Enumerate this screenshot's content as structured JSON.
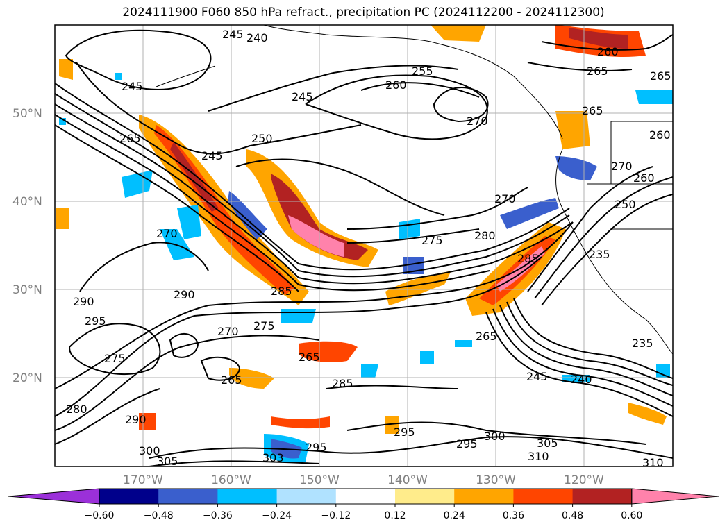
{
  "title": "2024111900 F060 850 hPa refract., precipitation PC (2024112200 - 2024112300)",
  "lat_labels": [
    "50°N",
    "40°N",
    "30°N",
    "20°N"
  ],
  "lon_labels": [
    "170°W",
    "160°W",
    "150°W",
    "140°W",
    "130°W",
    "120°W"
  ],
  "colorbar": {
    "ticks": [
      "−0.60",
      "−0.48",
      "−0.36",
      "−0.24",
      "−0.12",
      "0.12",
      "0.24",
      "0.36",
      "0.48",
      "0.60"
    ],
    "colors": [
      "#9b30d9",
      "#00008b",
      "#3a5fcd",
      "#00bfff",
      "#b0e2ff",
      "#ffffff",
      "#ffec8b",
      "#ffa500",
      "#ff4500",
      "#b22222",
      "#ff82ab"
    ]
  },
  "contour_labels": [
    {
      "text": "245"
    },
    {
      "text": "240"
    },
    {
      "text": "245"
    },
    {
      "text": "265"
    },
    {
      "text": "245"
    },
    {
      "text": "250"
    },
    {
      "text": "245"
    },
    {
      "text": "255"
    },
    {
      "text": "260"
    },
    {
      "text": "270"
    },
    {
      "text": "260"
    },
    {
      "text": "265"
    },
    {
      "text": "265"
    },
    {
      "text": "265"
    },
    {
      "text": "260"
    },
    {
      "text": "270"
    },
    {
      "text": "260"
    },
    {
      "text": "250"
    },
    {
      "text": "270"
    },
    {
      "text": "280"
    },
    {
      "text": "275"
    },
    {
      "text": "285"
    },
    {
      "text": "235"
    },
    {
      "text": "270"
    },
    {
      "text": "285"
    },
    {
      "text": "290"
    },
    {
      "text": "290"
    },
    {
      "text": "295"
    },
    {
      "text": "270"
    },
    {
      "text": "275"
    },
    {
      "text": "275"
    },
    {
      "text": "265"
    },
    {
      "text": "265"
    },
    {
      "text": "285"
    },
    {
      "text": "265"
    },
    {
      "text": "235"
    },
    {
      "text": "245"
    },
    {
      "text": "240"
    },
    {
      "text": "280"
    },
    {
      "text": "290"
    },
    {
      "text": "300"
    },
    {
      "text": "305"
    },
    {
      "text": "303"
    },
    {
      "text": "295"
    },
    {
      "text": "295"
    },
    {
      "text": "295"
    },
    {
      "text": "300"
    },
    {
      "text": "305"
    },
    {
      "text": "310"
    },
    {
      "text": "310"
    }
  ]
}
